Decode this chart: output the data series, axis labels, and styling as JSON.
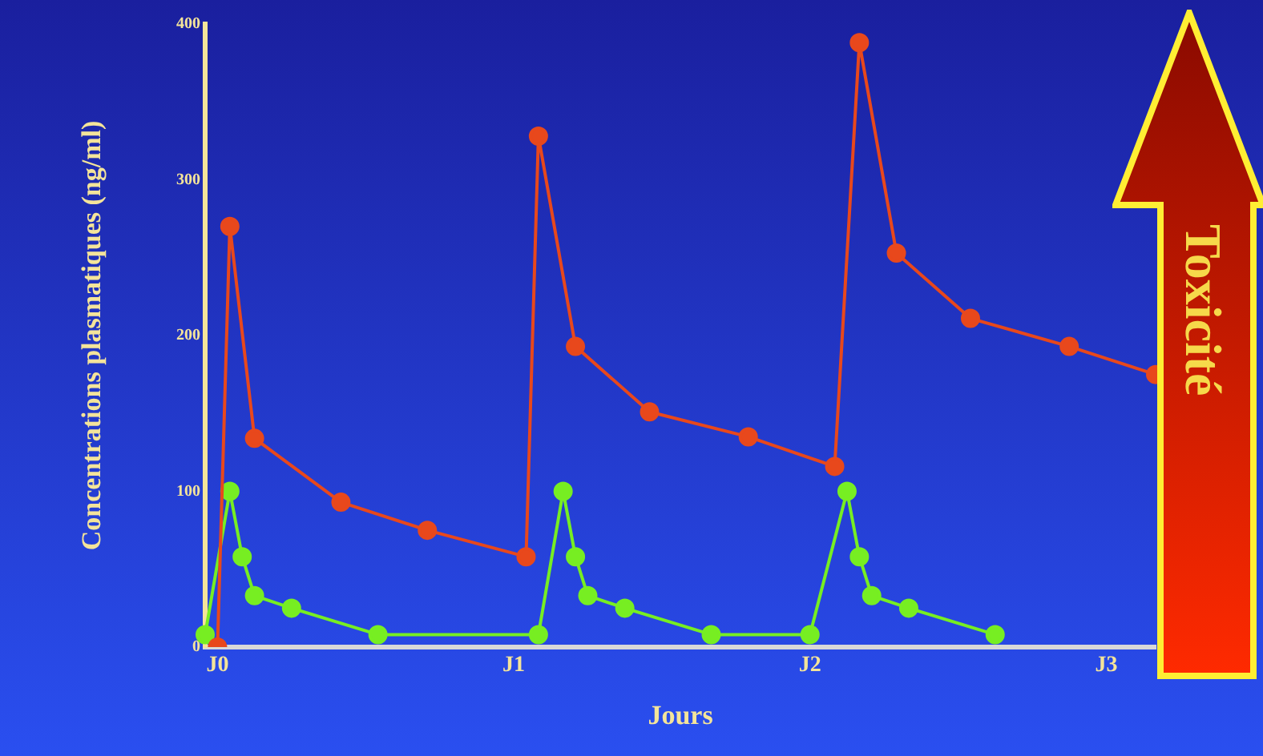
{
  "chart_data": {
    "type": "line",
    "xlabel": "Jours",
    "ylabel": "Concentrations plasmatiques (ng/ml)",
    "categories": [
      null,
      "J0",
      null,
      null,
      null,
      null,
      null,
      null,
      null,
      null,
      null,
      null,
      null,
      null,
      null,
      null,
      null,
      null,
      null,
      null,
      null,
      null,
      null,
      null,
      null,
      "J1",
      null,
      null,
      null,
      null,
      null,
      null,
      null,
      null,
      null,
      null,
      null,
      null,
      null,
      null,
      null,
      null,
      null,
      null,
      null,
      null,
      null,
      null,
      null,
      "J2",
      null,
      null,
      null,
      null,
      null,
      null,
      null,
      null,
      null,
      null,
      null,
      null,
      null,
      null,
      null,
      null,
      null,
      null,
      null,
      null,
      null,
      null,
      null,
      "J3",
      null,
      null,
      null,
      null
    ],
    "ylim": [
      0,
      400
    ],
    "yticks": [
      0,
      100,
      200,
      300,
      400
    ],
    "grid": false,
    "legend": false,
    "marker": "circle",
    "line_style": "solid",
    "annotations": [
      "Toxicité"
    ],
    "series": [
      {
        "color": "#e8481c",
        "values": [
          null,
          0,
          270,
          null,
          134,
          null,
          null,
          null,
          null,
          null,
          null,
          93,
          null,
          null,
          null,
          null,
          null,
          null,
          75,
          null,
          null,
          null,
          null,
          null,
          null,
          null,
          58,
          328,
          null,
          null,
          193,
          null,
          null,
          null,
          null,
          null,
          151,
          null,
          null,
          null,
          null,
          null,
          null,
          null,
          135,
          null,
          null,
          null,
          null,
          null,
          null,
          116,
          null,
          388,
          null,
          null,
          253,
          null,
          null,
          null,
          null,
          null,
          211,
          null,
          null,
          null,
          null,
          null,
          null,
          null,
          193,
          null,
          null,
          null,
          null,
          null,
          null,
          175
        ]
      },
      {
        "color": "#77ee22",
        "values": [
          8,
          null,
          100,
          58,
          33,
          null,
          null,
          25,
          null,
          null,
          null,
          null,
          null,
          null,
          8,
          null,
          null,
          null,
          null,
          null,
          null,
          null,
          null,
          null,
          null,
          null,
          null,
          8,
          null,
          100,
          58,
          33,
          null,
          null,
          25,
          null,
          null,
          null,
          null,
          null,
          null,
          8,
          null,
          null,
          null,
          null,
          null,
          null,
          null,
          8,
          null,
          null,
          100,
          58,
          33,
          null,
          null,
          25,
          null,
          null,
          null,
          null,
          null,
          null,
          8,
          null,
          null,
          null,
          null,
          null,
          null,
          null,
          null,
          null,
          null,
          null,
          null,
          null
        ]
      }
    ]
  }
}
